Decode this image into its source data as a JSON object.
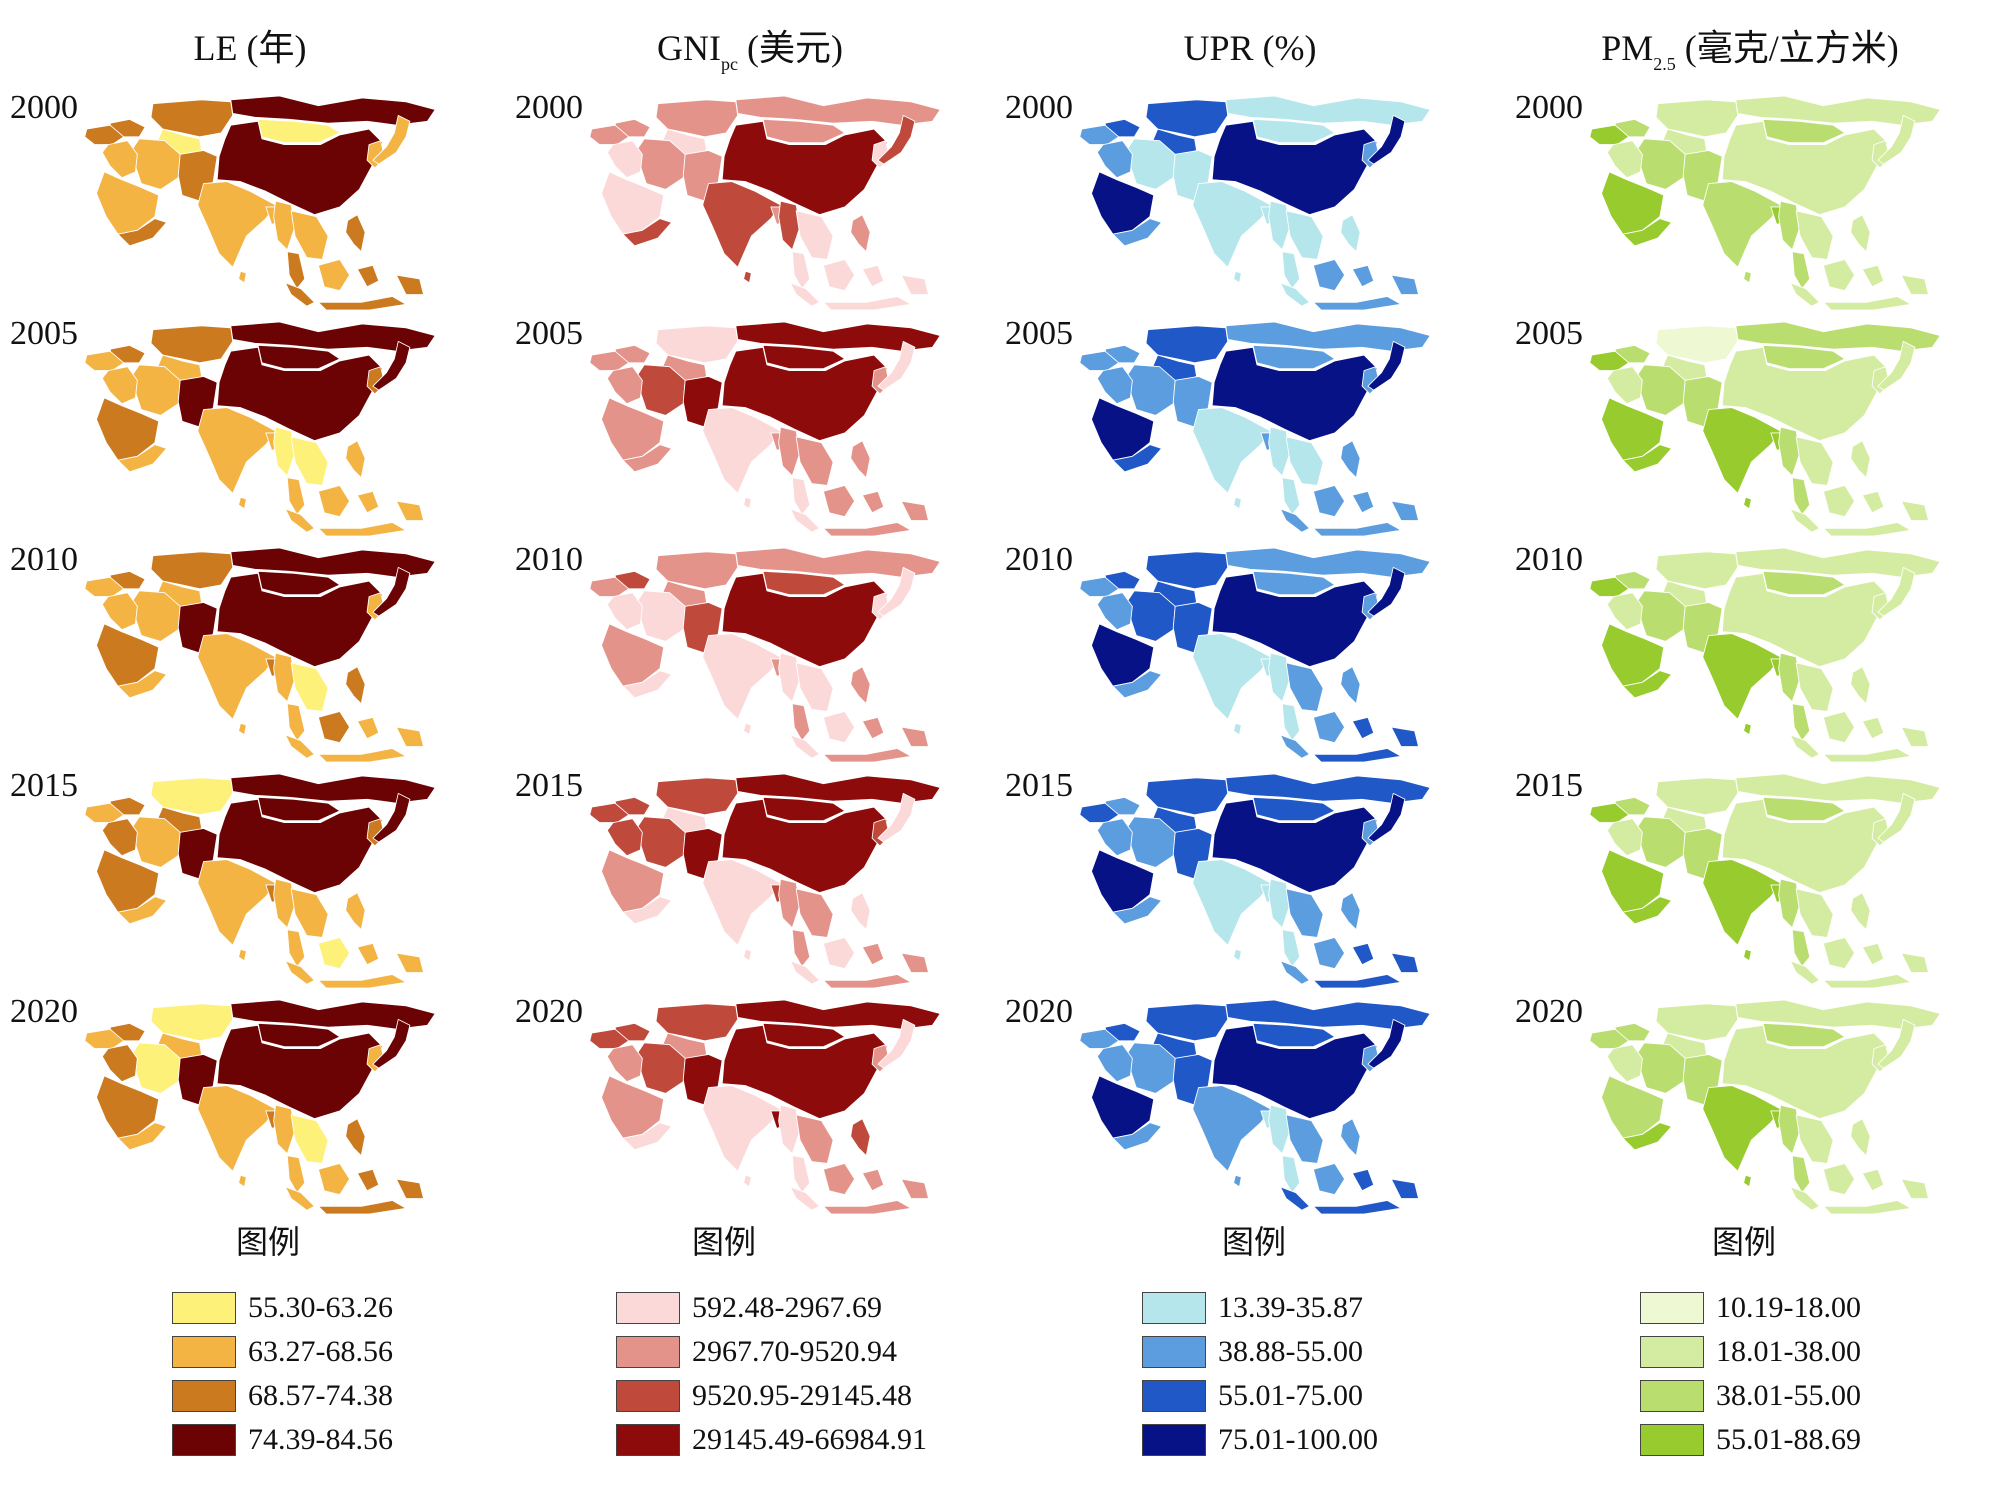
{
  "panels": [
    {
      "title": "LE (年)",
      "title_html": "LE (年)",
      "palette": [
        "#fdf17a",
        "#f4b444",
        "#cc7a1f",
        "#6b0305"
      ],
      "years": [
        {
          "year": "2000",
          "classes": [
            3,
            2,
            0,
            0,
            2,
            2,
            1,
            2,
            3,
            1,
            1,
            2,
            1,
            1,
            1,
            1,
            1,
            2,
            2,
            2,
            1,
            2,
            1
          ]
        },
        {
          "year": "2005",
          "classes": [
            3,
            2,
            3,
            1,
            2,
            1,
            1,
            3,
            3,
            1,
            2,
            1,
            1,
            1,
            0,
            0,
            2,
            1,
            1,
            1,
            1,
            1,
            3
          ]
        },
        {
          "year": "2010",
          "classes": [
            3,
            2,
            3,
            1,
            2,
            1,
            1,
            3,
            3,
            1,
            2,
            1,
            1,
            2,
            1,
            0,
            1,
            1,
            2,
            1,
            2,
            1,
            3
          ]
        },
        {
          "year": "2015",
          "classes": [
            3,
            0,
            3,
            2,
            2,
            1,
            1,
            3,
            3,
            2,
            2,
            1,
            1,
            2,
            1,
            1,
            2,
            1,
            1,
            1,
            0,
            1,
            3
          ]
        },
        {
          "year": "2020",
          "classes": [
            3,
            0,
            3,
            1,
            2,
            1,
            0,
            3,
            3,
            2,
            2,
            1,
            1,
            2,
            1,
            0,
            1,
            1,
            2,
            1,
            1,
            2,
            3
          ]
        }
      ],
      "legend_title": "图例",
      "legend": [
        "55.30-63.26",
        "63.27-68.56",
        "68.57-74.38",
        "74.39-84.56"
      ]
    },
    {
      "title": "GNIpc (美元)",
      "palette": [
        "#fcd9d9",
        "#e4938a",
        "#bf4a3c",
        "#8e0b0b"
      ],
      "years": [
        {
          "year": "2000",
          "classes": [
            1,
            1,
            1,
            0,
            1,
            1,
            1,
            1,
            3,
            0,
            0,
            2,
            2,
            1,
            2,
            0,
            0,
            0,
            1,
            0,
            0,
            0,
            2
          ]
        },
        {
          "year": "2005",
          "classes": [
            3,
            0,
            3,
            1,
            1,
            1,
            2,
            3,
            3,
            1,
            1,
            1,
            0,
            1,
            1,
            1,
            1,
            0,
            1,
            0,
            1,
            1,
            0
          ]
        },
        {
          "year": "2010",
          "classes": [
            1,
            1,
            2,
            1,
            2,
            1,
            0,
            2,
            3,
            0,
            1,
            0,
            0,
            1,
            0,
            0,
            0,
            1,
            1,
            0,
            0,
            1,
            0
          ]
        },
        {
          "year": "2015",
          "classes": [
            3,
            2,
            3,
            0,
            2,
            2,
            2,
            3,
            3,
            2,
            1,
            0,
            0,
            2,
            1,
            1,
            2,
            1,
            0,
            0,
            0,
            1,
            0
          ]
        },
        {
          "year": "2020",
          "classes": [
            3,
            2,
            3,
            1,
            2,
            2,
            2,
            3,
            3,
            1,
            1,
            0,
            0,
            3,
            0,
            1,
            1,
            0,
            2,
            0,
            1,
            1,
            0
          ]
        }
      ],
      "legend_title": "图例",
      "legend": [
        "592.48-2967.69",
        "2967.70-9520.94",
        "9520.95-29145.48",
        "29145.49-66984.91"
      ]
    },
    {
      "title": "UPR (%)",
      "palette": [
        "#b4e6ec",
        "#5c9ddf",
        "#2058c8",
        "#071287"
      ],
      "years": [
        {
          "year": "2000",
          "classes": [
            0,
            2,
            0,
            2,
            2,
            1,
            0,
            0,
            3,
            1,
            3,
            1,
            0,
            0,
            0,
            0,
            1,
            0,
            0,
            0,
            1,
            1,
            3
          ]
        },
        {
          "year": "2005",
          "classes": [
            1,
            2,
            1,
            2,
            1,
            1,
            1,
            1,
            3,
            1,
            3,
            2,
            0,
            1,
            0,
            0,
            1,
            0,
            1,
            1,
            1,
            1,
            3
          ]
        },
        {
          "year": "2010",
          "classes": [
            1,
            2,
            1,
            2,
            2,
            1,
            2,
            2,
            3,
            1,
            3,
            1,
            0,
            0,
            0,
            1,
            1,
            0,
            1,
            1,
            1,
            2,
            3
          ]
        },
        {
          "year": "2015",
          "classes": [
            2,
            2,
            2,
            2,
            1,
            2,
            1,
            2,
            3,
            1,
            3,
            1,
            0,
            0,
            0,
            1,
            1,
            0,
            1,
            1,
            1,
            2,
            3
          ]
        },
        {
          "year": "2020",
          "classes": [
            2,
            2,
            2,
            2,
            2,
            1,
            1,
            2,
            3,
            1,
            3,
            1,
            1,
            0,
            0,
            1,
            1,
            0,
            1,
            2,
            1,
            2,
            3
          ]
        }
      ],
      "legend_title": "图例",
      "legend": [
        "13.39-35.87",
        "38.88-55.00",
        "55.01-75.00",
        "75.01-100.00"
      ]
    },
    {
      "title": "PM2.5 (毫克/立方米)",
      "palette": [
        "#eef8d2",
        "#d4eca1",
        "#b9de6f",
        "#97cb2e"
      ],
      "years": [
        {
          "year": "2000",
          "classes": [
            1,
            1,
            2,
            1,
            2,
            3,
            2,
            2,
            1,
            1,
            3,
            3,
            2,
            3,
            2,
            1,
            1,
            2,
            1,
            1,
            1,
            1,
            1
          ]
        },
        {
          "year": "2005",
          "classes": [
            2,
            0,
            2,
            1,
            2,
            3,
            2,
            2,
            1,
            1,
            3,
            3,
            3,
            3,
            2,
            1,
            1,
            2,
            1,
            1,
            1,
            1,
            1
          ]
        },
        {
          "year": "2010",
          "classes": [
            1,
            1,
            2,
            1,
            2,
            3,
            2,
            2,
            1,
            1,
            3,
            3,
            3,
            3,
            2,
            1,
            1,
            2,
            1,
            1,
            1,
            1,
            1
          ]
        },
        {
          "year": "2015",
          "classes": [
            1,
            1,
            2,
            1,
            2,
            3,
            2,
            2,
            1,
            1,
            3,
            3,
            3,
            3,
            2,
            1,
            1,
            2,
            1,
            1,
            1,
            1,
            1
          ]
        },
        {
          "year": "2020",
          "classes": [
            1,
            1,
            2,
            1,
            2,
            2,
            2,
            2,
            1,
            1,
            2,
            3,
            3,
            3,
            2,
            1,
            1,
            2,
            1,
            1,
            1,
            1,
            1
          ]
        }
      ],
      "legend_title": "图例",
      "legend": [
        "10.19-18.00",
        "18.01-38.00",
        "38.01-55.00",
        "55.01-88.69"
      ]
    }
  ]
}
